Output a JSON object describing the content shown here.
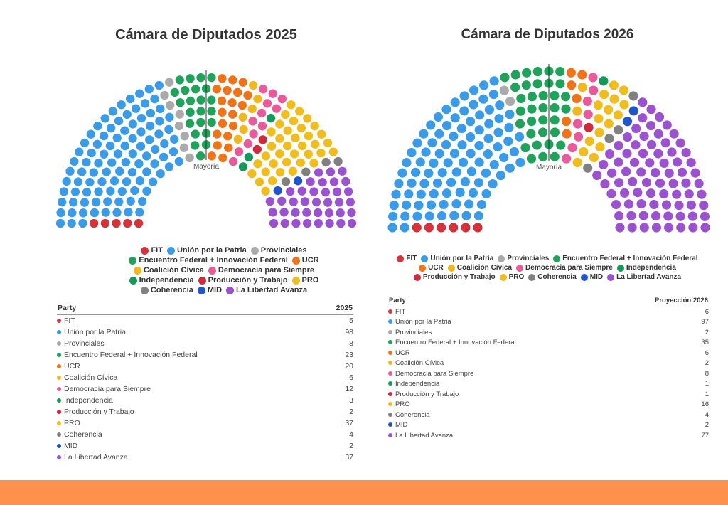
{
  "chart_data": [
    {
      "type": "parliament",
      "title": "Cámara de Diputados 2025",
      "majority_label": "Mayoría",
      "table_headers": [
        "Party",
        "2025"
      ],
      "categories": [
        "FIT",
        "Unión por la Patria",
        "Provinciales",
        "Encuentro Federal + Innovación Federal",
        "UCR",
        "Coalición Cívica",
        "Democracia para Siempre",
        "Independencia",
        "Producción y Trabajo",
        "PRO",
        "Coherencia",
        "MID",
        "La Libertad Avanza"
      ],
      "values": [
        5,
        98,
        8,
        23,
        20,
        6,
        12,
        3,
        2,
        37,
        4,
        2,
        37
      ],
      "colors": [
        "#d7323a",
        "#3a9be8",
        "#aaaaaa",
        "#1fa35b",
        "#f07318",
        "#f0b71e",
        "#ea5a9a",
        "#139a5a",
        "#d02a3a",
        "#f1bd1d",
        "#808080",
        "#1f55c8",
        "#9b52d0"
      ]
    },
    {
      "type": "parliament",
      "title": "Cámara de Diputados 2026",
      "majority_label": "Mayoría",
      "table_headers": [
        "Party",
        "Proyección 2026"
      ],
      "categories": [
        "FIT",
        "Unión por la Patria",
        "Provinciales",
        "Encuentro Federal + Innovación Federal",
        "UCR",
        "Coalición Cívica",
        "Democracia para Siempre",
        "Independencia",
        "Producción y Trabajo",
        "PRO",
        "Coherencia",
        "MID",
        "La Libertad Avanza"
      ],
      "values": [
        6,
        97,
        2,
        35,
        6,
        2,
        8,
        1,
        1,
        16,
        4,
        2,
        77
      ],
      "colors": [
        "#d7323a",
        "#3a9be8",
        "#aaaaaa",
        "#1fa35b",
        "#f07318",
        "#f0b71e",
        "#ea5a9a",
        "#139a5a",
        "#d02a3a",
        "#f1bd1d",
        "#808080",
        "#1f55c8",
        "#9b52d0"
      ]
    }
  ]
}
